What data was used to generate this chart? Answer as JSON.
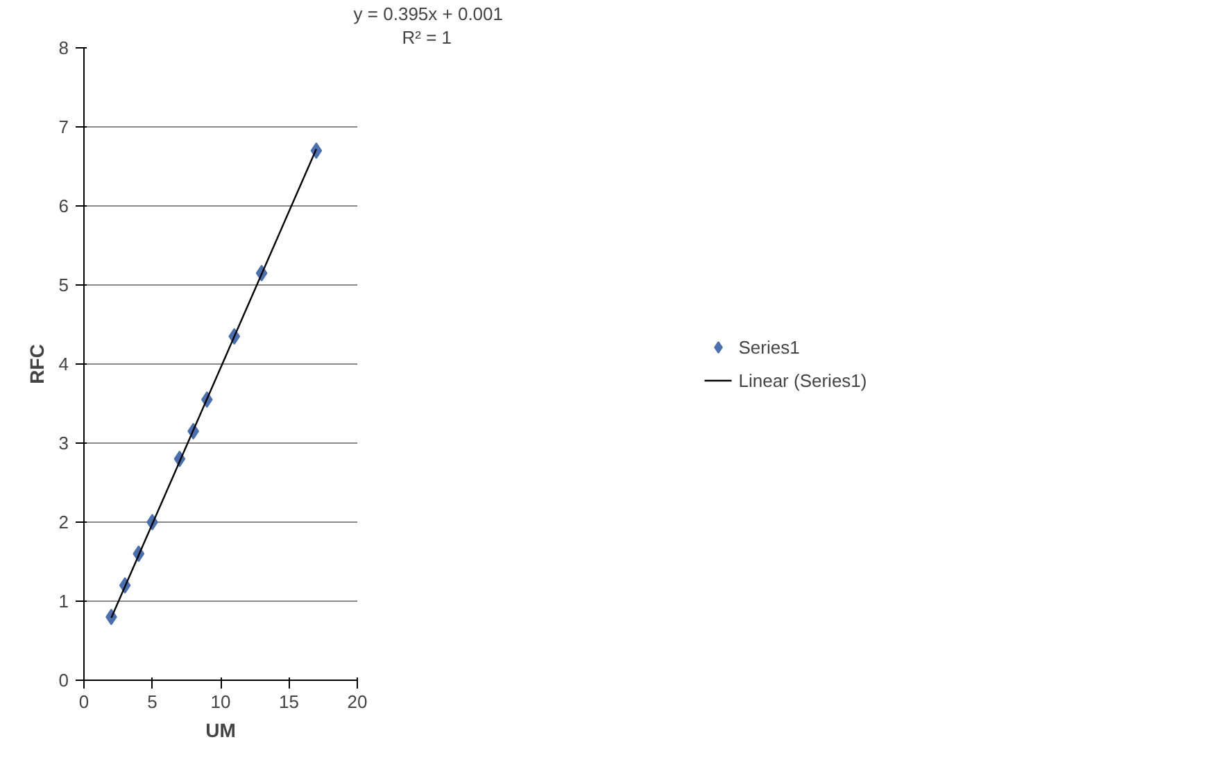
{
  "chart_data": {
    "type": "scatter",
    "xlabel": "UM",
    "ylabel": "RFC",
    "xlim": [
      0,
      20
    ],
    "ylim": [
      0,
      8
    ],
    "xticks": [
      0,
      5,
      10,
      15,
      20
    ],
    "yticks": [
      0,
      1,
      2,
      3,
      4,
      5,
      6,
      7,
      8
    ],
    "grid": "y",
    "legend": "right",
    "marker": "diamond",
    "annotations": [
      "y = 0.395x + 0.001",
      "R² = 1"
    ],
    "series": [
      {
        "name": "Series1",
        "color": "#4a70b0",
        "x": [
          2,
          3,
          4,
          5,
          7,
          8,
          9,
          11,
          13,
          17
        ],
        "values": [
          0.8,
          1.2,
          1.6,
          2.0,
          2.8,
          3.15,
          3.55,
          4.35,
          5.15,
          6.7
        ]
      },
      {
        "name": "Linear (Series1)",
        "type": "line",
        "color": "#000000",
        "x": [
          2,
          17
        ],
        "values": [
          0.79,
          6.72
        ],
        "marker": "none",
        "line_style": "solid"
      }
    ]
  }
}
